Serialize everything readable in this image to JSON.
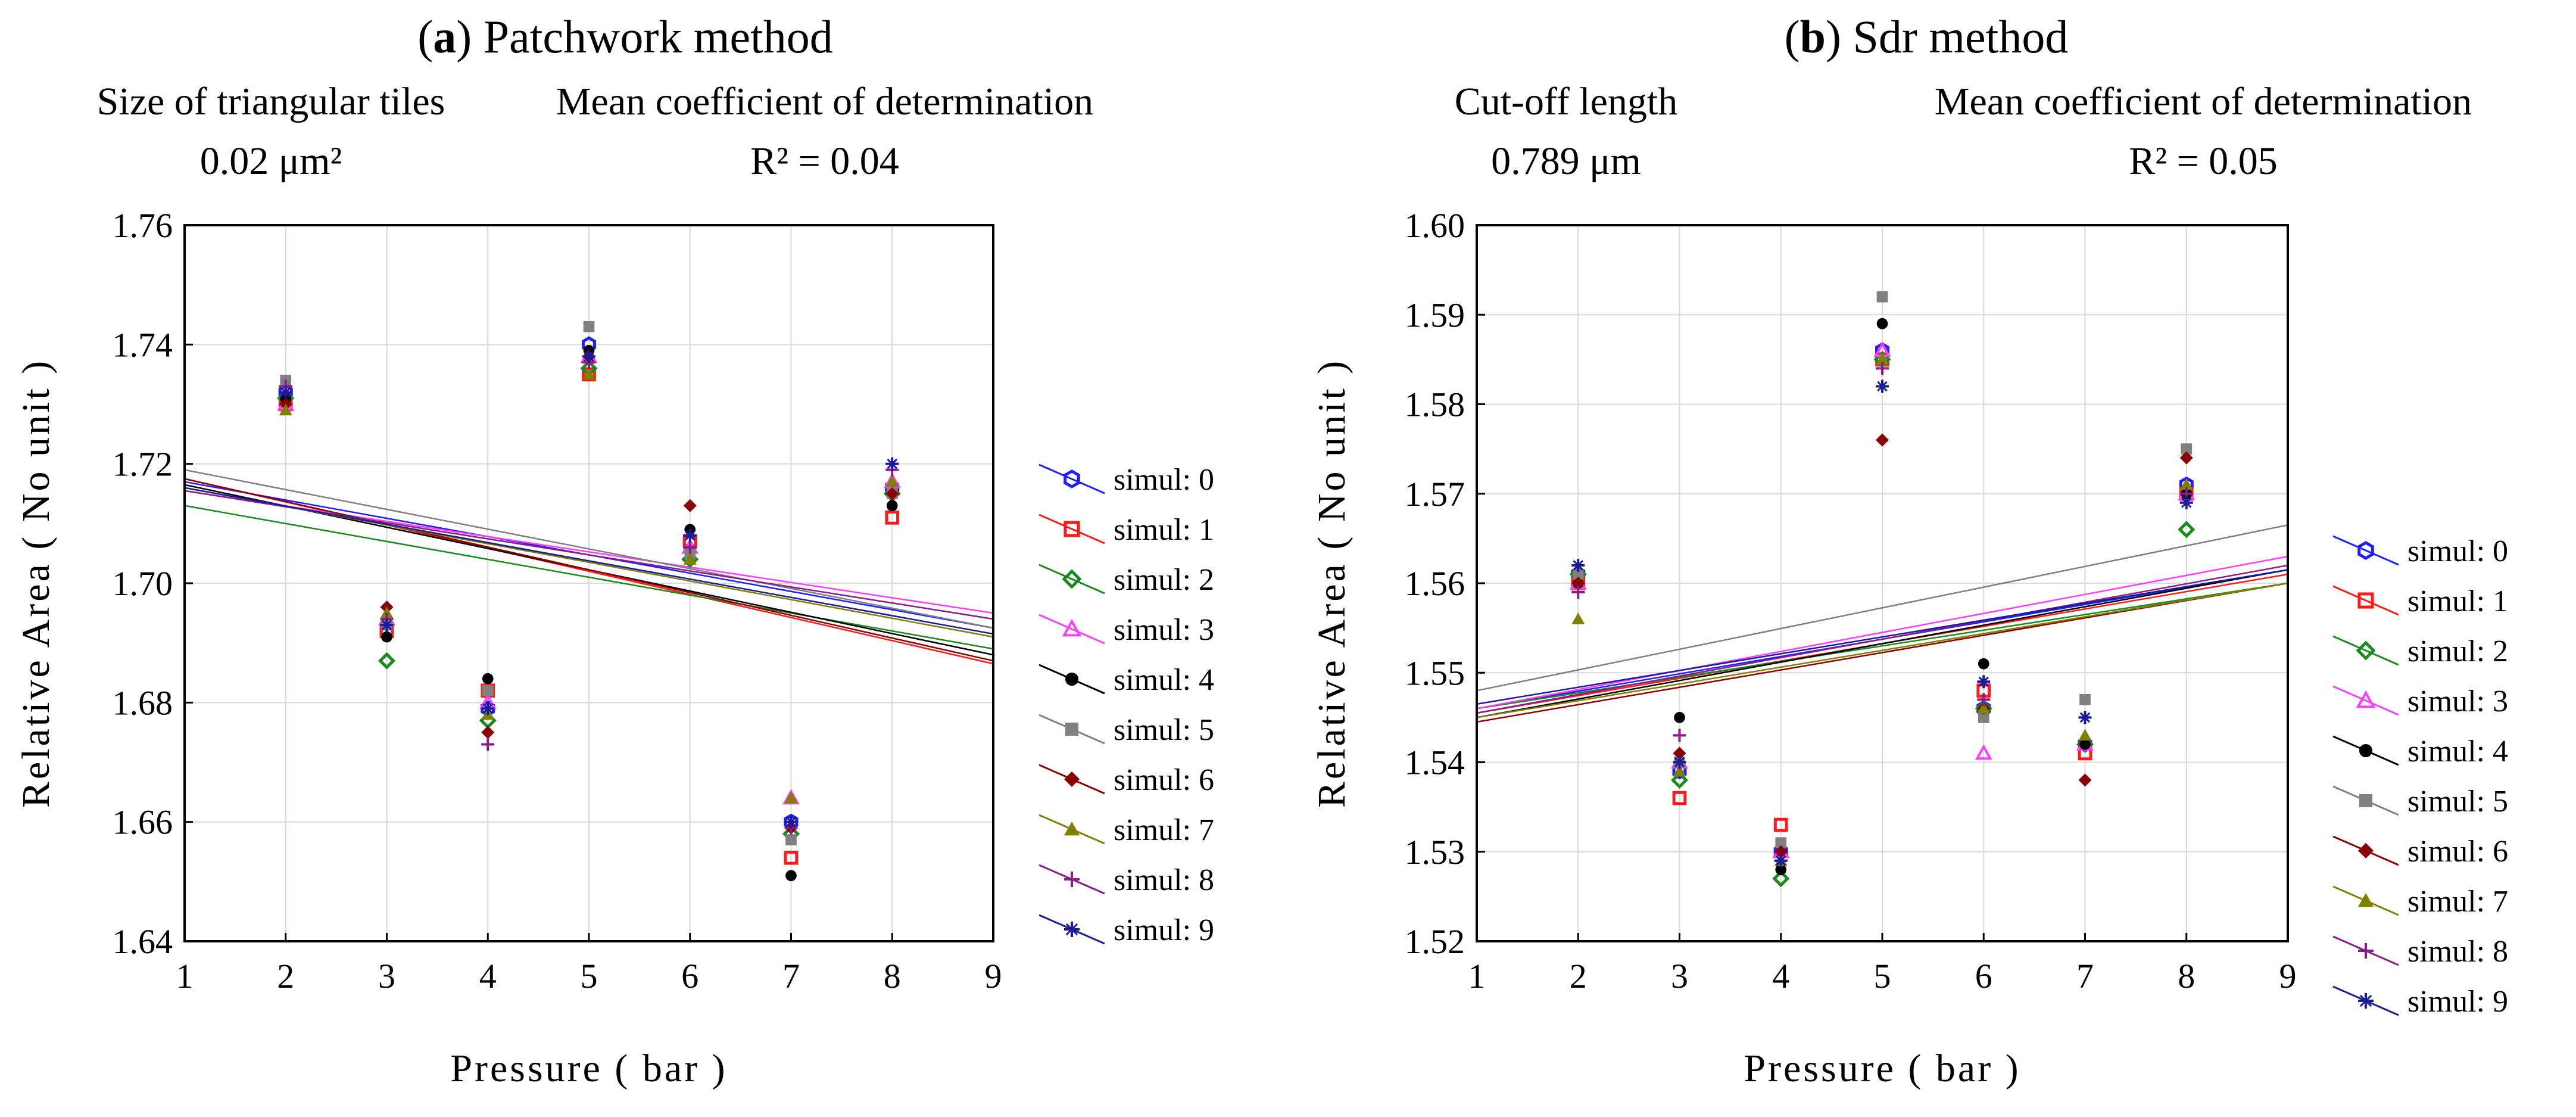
{
  "chart_data": [
    {
      "type": "scatter",
      "panel_letter": "a",
      "panel_title": "Patchwork method",
      "left_header": {
        "label": "Size of triangular tiles",
        "value": "0.02 μm²"
      },
      "right_header": {
        "label": "Mean coefficient of determination",
        "value": "R² = 0.04"
      },
      "xlabel": "Pressure ( bar )",
      "ylabel": "Relative Area ( No unit )",
      "xlim": [
        1,
        9
      ],
      "ylim": [
        1.64,
        1.76
      ],
      "xticks": [
        1,
        2,
        3,
        4,
        5,
        6,
        7,
        8,
        9
      ],
      "yticks": [
        1.64,
        1.66,
        1.68,
        1.7,
        1.72,
        1.74,
        1.76
      ],
      "ytick_decimals": 2,
      "grid": true,
      "legend_position": "right",
      "x": [
        2,
        3,
        4,
        5,
        6,
        7,
        8
      ],
      "series": [
        {
          "name": "simul: 0",
          "values": [
            1.732,
            1.692,
            1.679,
            1.74,
            1.707,
            1.66,
            1.716
          ],
          "trend": [
            1.717,
            1.6925
          ]
        },
        {
          "name": "simul: 1",
          "values": [
            1.73,
            1.692,
            1.682,
            1.735,
            1.707,
            1.654,
            1.711
          ],
          "trend": [
            1.7175,
            1.6865
          ]
        },
        {
          "name": "simul: 2",
          "values": [
            1.731,
            1.687,
            1.677,
            1.736,
            1.704,
            1.658,
            1.715
          ],
          "trend": [
            1.713,
            1.689
          ]
        },
        {
          "name": "simul: 3",
          "values": [
            1.73,
            1.694,
            1.68,
            1.738,
            1.706,
            1.664,
            1.717
          ],
          "trend": [
            1.7155,
            1.695
          ]
        },
        {
          "name": "simul: 4",
          "values": [
            1.731,
            1.691,
            1.684,
            1.739,
            1.709,
            1.651,
            1.713
          ],
          "trend": [
            1.7165,
            1.688
          ]
        },
        {
          "name": "simul: 5",
          "values": [
            1.734,
            1.693,
            1.682,
            1.743,
            1.705,
            1.657,
            1.715
          ],
          "trend": [
            1.719,
            1.6925
          ]
        },
        {
          "name": "simul: 6",
          "values": [
            1.73,
            1.696,
            1.675,
            1.738,
            1.713,
            1.659,
            1.715
          ],
          "trend": [
            1.7175,
            1.687
          ]
        },
        {
          "name": "simul: 7",
          "values": [
            1.729,
            1.695,
            1.678,
            1.735,
            1.704,
            1.664,
            1.717
          ],
          "trend": [
            1.716,
            1.691
          ]
        },
        {
          "name": "simul: 8",
          "values": [
            1.733,
            1.694,
            1.673,
            1.737,
            1.706,
            1.659,
            1.719
          ],
          "trend": [
            1.7155,
            1.694
          ]
        },
        {
          "name": "simul: 9",
          "values": [
            1.732,
            1.693,
            1.679,
            1.738,
            1.708,
            1.66,
            1.72
          ],
          "trend": [
            1.716,
            1.6915
          ]
        }
      ]
    },
    {
      "type": "scatter",
      "panel_letter": "b",
      "panel_title": "Sdr method",
      "left_header": {
        "label": "Cut-off length",
        "value": "0.789 μm"
      },
      "right_header": {
        "label": "Mean coefficient of determination",
        "value": "R² = 0.05"
      },
      "xlabel": "Pressure ( bar )",
      "ylabel": "Relative Area ( No unit )",
      "xlim": [
        1,
        9
      ],
      "ylim": [
        1.52,
        1.6
      ],
      "xticks": [
        1,
        2,
        3,
        4,
        5,
        6,
        7,
        8,
        9
      ],
      "yticks": [
        1.52,
        1.53,
        1.54,
        1.55,
        1.56,
        1.57,
        1.58,
        1.59,
        1.6
      ],
      "ytick_decimals": 2,
      "grid": true,
      "legend_position": "right",
      "x": [
        2,
        3,
        4,
        5,
        6,
        7,
        8
      ],
      "series": [
        {
          "name": "simul: 0",
          "values": [
            1.561,
            1.539,
            1.53,
            1.586,
            1.546,
            1.542,
            1.571
          ],
          "trend": [
            1.546,
            1.5615
          ]
        },
        {
          "name": "simul: 1",
          "values": [
            1.56,
            1.536,
            1.533,
            1.585,
            1.548,
            1.541,
            1.57
          ],
          "trend": [
            1.5455,
            1.561
          ]
        },
        {
          "name": "simul: 2",
          "values": [
            1.561,
            1.538,
            1.527,
            1.585,
            1.546,
            1.542,
            1.566
          ],
          "trend": [
            1.546,
            1.56
          ]
        },
        {
          "name": "simul: 3",
          "values": [
            1.56,
            1.54,
            1.53,
            1.586,
            1.541,
            1.542,
            1.57
          ],
          "trend": [
            1.546,
            1.563
          ]
        },
        {
          "name": "simul: 4",
          "values": [
            1.56,
            1.545,
            1.528,
            1.589,
            1.551,
            1.542,
            1.57
          ],
          "trend": [
            1.545,
            1.5615
          ]
        },
        {
          "name": "simul: 5",
          "values": [
            1.561,
            1.54,
            1.531,
            1.592,
            1.545,
            1.547,
            1.575
          ],
          "trend": [
            1.548,
            1.5665
          ]
        },
        {
          "name": "simul: 6",
          "values": [
            1.56,
            1.541,
            1.53,
            1.576,
            1.546,
            1.538,
            1.574
          ],
          "trend": [
            1.5445,
            1.56
          ]
        },
        {
          "name": "simul: 7",
          "values": [
            1.556,
            1.539,
            1.529,
            1.585,
            1.546,
            1.543,
            1.571
          ],
          "trend": [
            1.545,
            1.56
          ]
        },
        {
          "name": "simul: 8",
          "values": [
            1.559,
            1.543,
            1.529,
            1.584,
            1.547,
            1.545,
            1.57
          ],
          "trend": [
            1.5455,
            1.562
          ]
        },
        {
          "name": "simul: 9",
          "values": [
            1.562,
            1.54,
            1.529,
            1.582,
            1.549,
            1.545,
            1.569
          ],
          "trend": [
            1.5465,
            1.5615
          ]
        }
      ]
    }
  ],
  "series_style": [
    {
      "marker": "hex-open",
      "color": "#1f1fff"
    },
    {
      "marker": "square-open",
      "color": "#ff1a1a"
    },
    {
      "marker": "diamond-open",
      "color": "#1a8a1a"
    },
    {
      "marker": "triangle-open",
      "color": "#ff3dff"
    },
    {
      "marker": "circle-filled",
      "color": "#000000"
    },
    {
      "marker": "square-filled",
      "color": "#808080"
    },
    {
      "marker": "diamond-filled",
      "color": "#8b0000"
    },
    {
      "marker": "triangle-filled",
      "color": "#808000"
    },
    {
      "marker": "plus",
      "color": "#8b1a8b"
    },
    {
      "marker": "asterisk",
      "color": "#1a1a9a"
    }
  ],
  "colors": {
    "axis": "#000000",
    "grid": "#d9d9d9",
    "text": "#1a1a1a"
  }
}
